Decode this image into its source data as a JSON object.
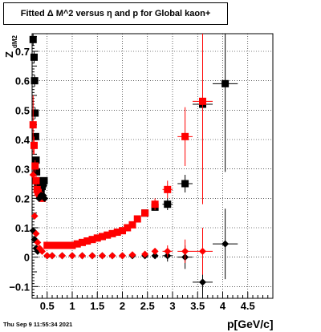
{
  "title": "Fitted Δ M^2 versus η and p for Global kaon+",
  "timestamp": "Thu Sep  9 11:55:34 2021",
  "colors": {
    "red": "#ff0000",
    "black": "#000000"
  },
  "chart_data": {
    "type": "scatter",
    "title": "Fitted Δ M^2 versus η and p for Global kaon+",
    "xlabel": "p[GeV/c]",
    "ylabel_main": "Z",
    "ylabel_sub": "dM2",
    "xlim": [
      0.2,
      5.0
    ],
    "ylim": [
      -0.14,
      0.76
    ],
    "grid": true,
    "xticks": [
      0.5,
      1,
      1.5,
      2,
      2.5,
      3,
      3.5,
      4,
      4.5
    ],
    "xtick_labels": [
      "0.5",
      "1",
      "1.5",
      "2",
      "2.5",
      "3",
      "3.5",
      "4",
      "4.5"
    ],
    "yticks": [
      -0.1,
      0,
      0.1,
      0.2,
      0.3,
      0.4,
      0.5,
      0.6,
      0.7
    ],
    "ytick_labels": [
      "−0.1",
      "0",
      "0.1",
      "0.2",
      "0.3",
      "0.4",
      "0.5",
      "0.6",
      "0.7"
    ],
    "series": [
      {
        "marker": "square",
        "color": "#000000",
        "x": [
          0.22,
          0.24,
          0.25,
          0.26,
          0.27,
          0.28,
          0.29,
          0.3,
          0.31,
          0.32,
          0.34,
          0.36,
          0.38,
          0.4,
          0.42,
          0.44,
          2.45,
          2.65,
          2.9,
          3.25,
          3.6,
          4.05
        ],
        "y": [
          0.74,
          0.68,
          0.6,
          0.49,
          0.41,
          0.33,
          0.29,
          0.26,
          0.24,
          0.23,
          0.22,
          0.22,
          0.23,
          0.24,
          0.25,
          0.26,
          0.15,
          0.17,
          0.18,
          0.25,
          0.52,
          0.59
        ],
        "xerr": [
          0,
          0,
          0,
          0,
          0,
          0,
          0,
          0,
          0,
          0,
          0,
          0,
          0,
          0,
          0,
          0,
          0.05,
          0.05,
          0.1,
          0.15,
          0.2,
          0.25
        ],
        "yerr": [
          0.02,
          0.02,
          0.02,
          0.02,
          0.01,
          0.01,
          0.01,
          0.01,
          0.01,
          0.01,
          0.01,
          0.01,
          0.01,
          0.01,
          0.01,
          0.01,
          0.01,
          0.01,
          0.02,
          0.03,
          0.1,
          0.3
        ]
      },
      {
        "marker": "square",
        "color": "#ff0000",
        "x": [
          0.22,
          0.24,
          0.26,
          0.28,
          0.3,
          0.32,
          0.35,
          0.4,
          0.5,
          0.6,
          0.7,
          0.8,
          0.9,
          1.0,
          1.1,
          1.2,
          1.3,
          1.4,
          1.5,
          1.6,
          1.7,
          1.8,
          1.9,
          2.0,
          2.1,
          2.2,
          2.3,
          2.45,
          2.65,
          2.9,
          3.25,
          3.6
        ],
        "y": [
          0.45,
          0.38,
          0.31,
          0.26,
          0.23,
          0.22,
          0.21,
          0.2,
          0.04,
          0.04,
          0.04,
          0.04,
          0.04,
          0.04,
          0.045,
          0.05,
          0.055,
          0.06,
          0.065,
          0.07,
          0.075,
          0.08,
          0.085,
          0.09,
          0.1,
          0.11,
          0.13,
          0.15,
          0.18,
          0.23,
          0.41,
          0.53
        ],
        "xerr": [
          0,
          0,
          0,
          0,
          0,
          0,
          0,
          0,
          0,
          0,
          0,
          0,
          0,
          0,
          0,
          0,
          0,
          0,
          0,
          0,
          0,
          0,
          0,
          0,
          0,
          0,
          0,
          0.05,
          0.05,
          0.1,
          0.15,
          0.2
        ],
        "yerr": [
          0.1,
          0.03,
          0.02,
          0.02,
          0.01,
          0.01,
          0.01,
          0.01,
          0.005,
          0.005,
          0.005,
          0.005,
          0.005,
          0.005,
          0.005,
          0.005,
          0.005,
          0.005,
          0.005,
          0.005,
          0.005,
          0.005,
          0.005,
          0.005,
          0.005,
          0.01,
          0.01,
          0.01,
          0.02,
          0.03,
          0.1,
          0.35
        ]
      },
      {
        "marker": "diamond",
        "color": "#000000",
        "x": [
          0.22,
          0.25,
          0.28,
          0.31,
          0.34,
          0.38,
          0.42,
          0.45,
          0.5,
          0.6,
          0.8,
          1.0,
          1.2,
          1.4,
          1.6,
          1.8,
          2.0,
          2.2,
          2.45,
          2.65,
          2.9,
          3.25,
          3.6,
          4.05
        ],
        "y": [
          0.09,
          0.06,
          0.03,
          0.02,
          0.2,
          0.21,
          0.21,
          0.2,
          0.005,
          0.005,
          0.005,
          0.005,
          0.005,
          0.005,
          0.005,
          0.005,
          0.005,
          0.005,
          0.005,
          0.005,
          0.005,
          0.0,
          -0.085,
          0.045
        ],
        "xerr": [
          0,
          0,
          0,
          0,
          0,
          0,
          0,
          0,
          0,
          0,
          0,
          0,
          0,
          0,
          0,
          0,
          0,
          0,
          0.05,
          0.05,
          0.1,
          0.15,
          0.2,
          0.25
        ],
        "yerr": [
          0.01,
          0.01,
          0.01,
          0.01,
          0.01,
          0.01,
          0.01,
          0.01,
          0.003,
          0.003,
          0.003,
          0.003,
          0.003,
          0.003,
          0.003,
          0.003,
          0.003,
          0.003,
          0.005,
          0.01,
          0.02,
          0.04,
          0.1,
          0.12
        ]
      },
      {
        "marker": "diamond",
        "color": "#ff0000",
        "x": [
          0.22,
          0.25,
          0.28,
          0.31,
          0.35,
          0.4,
          0.5,
          0.6,
          0.8,
          1.0,
          1.2,
          1.4,
          1.6,
          1.8,
          2.0,
          2.2,
          2.45,
          2.65,
          2.9,
          3.25,
          3.6
        ],
        "y": [
          0.28,
          0.14,
          0.08,
          0.05,
          0.03,
          0.02,
          0.005,
          0.005,
          0.005,
          0.005,
          0.005,
          0.005,
          0.005,
          0.005,
          0.005,
          0.008,
          0.01,
          0.02,
          0.02,
          0.02,
          0.02
        ],
        "xerr": [
          0,
          0,
          0,
          0,
          0,
          0,
          0,
          0,
          0,
          0,
          0,
          0,
          0,
          0,
          0,
          0,
          0.05,
          0.05,
          0.1,
          0.15,
          0.2
        ],
        "yerr": [
          0.02,
          0.01,
          0.01,
          0.01,
          0.01,
          0.01,
          0.003,
          0.003,
          0.003,
          0.003,
          0.003,
          0.003,
          0.003,
          0.003,
          0.003,
          0.003,
          0.005,
          0.01,
          0.02,
          0.04,
          0.08
        ]
      }
    ]
  }
}
